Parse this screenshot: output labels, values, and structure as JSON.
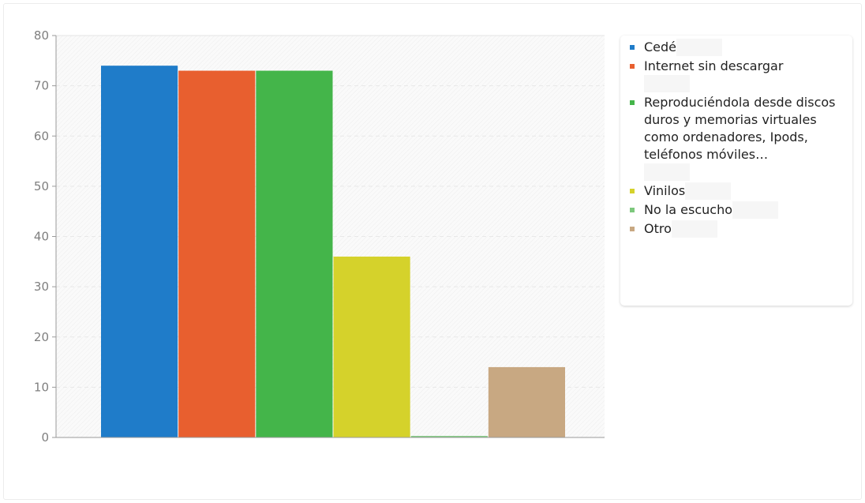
{
  "chart_data": {
    "type": "bar",
    "title": "",
    "xlabel": "",
    "ylabel": "",
    "ylim": [
      0,
      80
    ],
    "yticks": [
      0,
      10,
      20,
      30,
      40,
      50,
      60,
      70,
      80
    ],
    "grid": true,
    "legend_position": "right",
    "categories": [
      "Cedé",
      "Internet sin descargar",
      "Reproduciéndola desde discos duros y memorias virtuales como ordenadores, Ipods, teléfonos móviles…",
      "Vinilos",
      "No la escucho",
      "Otro"
    ],
    "values": [
      74,
      73,
      73,
      36,
      0.3,
      14
    ],
    "colors": [
      "#1f7cc9",
      "#e85f2f",
      "#44b54a",
      "#d5d22b",
      "#7dc87d",
      "#c8a882"
    ]
  }
}
